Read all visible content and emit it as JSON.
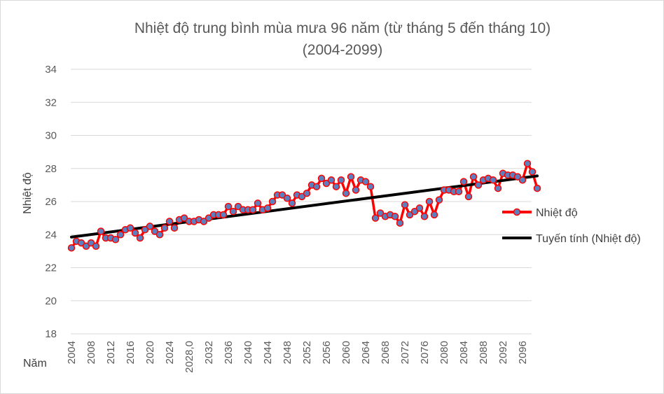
{
  "chart_data": {
    "type": "line",
    "title": "Nhiệt độ trung bình mùa mưa 96 năm (từ tháng 5 đến tháng 10)",
    "subtitle": "(2004-2099)",
    "ylabel": "Nhiệt độ",
    "xlabel": "Năm",
    "ylim": [
      18,
      34
    ],
    "yticks": [
      18,
      20,
      22,
      24,
      26,
      28,
      30,
      32,
      34
    ],
    "xticks": [
      "2004",
      "2008",
      "2012",
      "2016",
      "2020",
      "2024",
      "2028,0",
      "2032",
      "2036",
      "2040",
      "2044",
      "2048",
      "2052",
      "2056",
      "2060",
      "2064",
      "2068",
      "2072",
      "2076",
      "2080",
      "2084",
      "2088",
      "2092",
      "2096"
    ],
    "x_start": 2004,
    "x_end": 2099,
    "grid": true,
    "legend_position": "right",
    "colors": {
      "series": "#ff0000",
      "marker_fill": "#5b7fbf",
      "trend": "#000000"
    },
    "series": [
      {
        "name": "Nhiệt độ",
        "values": [
          23.2,
          23.6,
          23.5,
          23.3,
          23.5,
          23.3,
          24.2,
          23.8,
          23.8,
          23.7,
          24.0,
          24.3,
          24.4,
          24.1,
          23.8,
          24.3,
          24.5,
          24.2,
          24.0,
          24.4,
          24.8,
          24.4,
          24.9,
          25.0,
          24.8,
          24.8,
          24.9,
          24.8,
          25.0,
          25.2,
          25.2,
          25.2,
          25.7,
          25.4,
          25.7,
          25.5,
          25.5,
          25.5,
          25.9,
          25.5,
          25.6,
          26.0,
          26.4,
          26.4,
          26.2,
          25.9,
          26.4,
          26.3,
          26.5,
          27.0,
          26.9,
          27.4,
          27.1,
          27.3,
          26.9,
          27.3,
          26.5,
          27.5,
          26.7,
          27.3,
          27.2,
          26.9,
          25.0,
          25.3,
          25.1,
          25.2,
          25.1,
          24.7,
          25.8,
          25.2,
          25.4,
          25.6,
          25.1,
          26.0,
          25.2,
          26.1,
          26.7,
          26.7,
          26.6,
          26.6,
          27.2,
          26.3,
          27.5,
          27.0,
          27.3,
          27.4,
          27.3,
          26.8,
          27.7,
          27.6,
          27.6,
          27.5,
          27.3,
          28.3,
          27.8,
          26.8
        ]
      },
      {
        "name": "Tuyến tính (Nhiệt độ)",
        "trend": [
          23.85,
          27.55
        ]
      }
    ]
  }
}
